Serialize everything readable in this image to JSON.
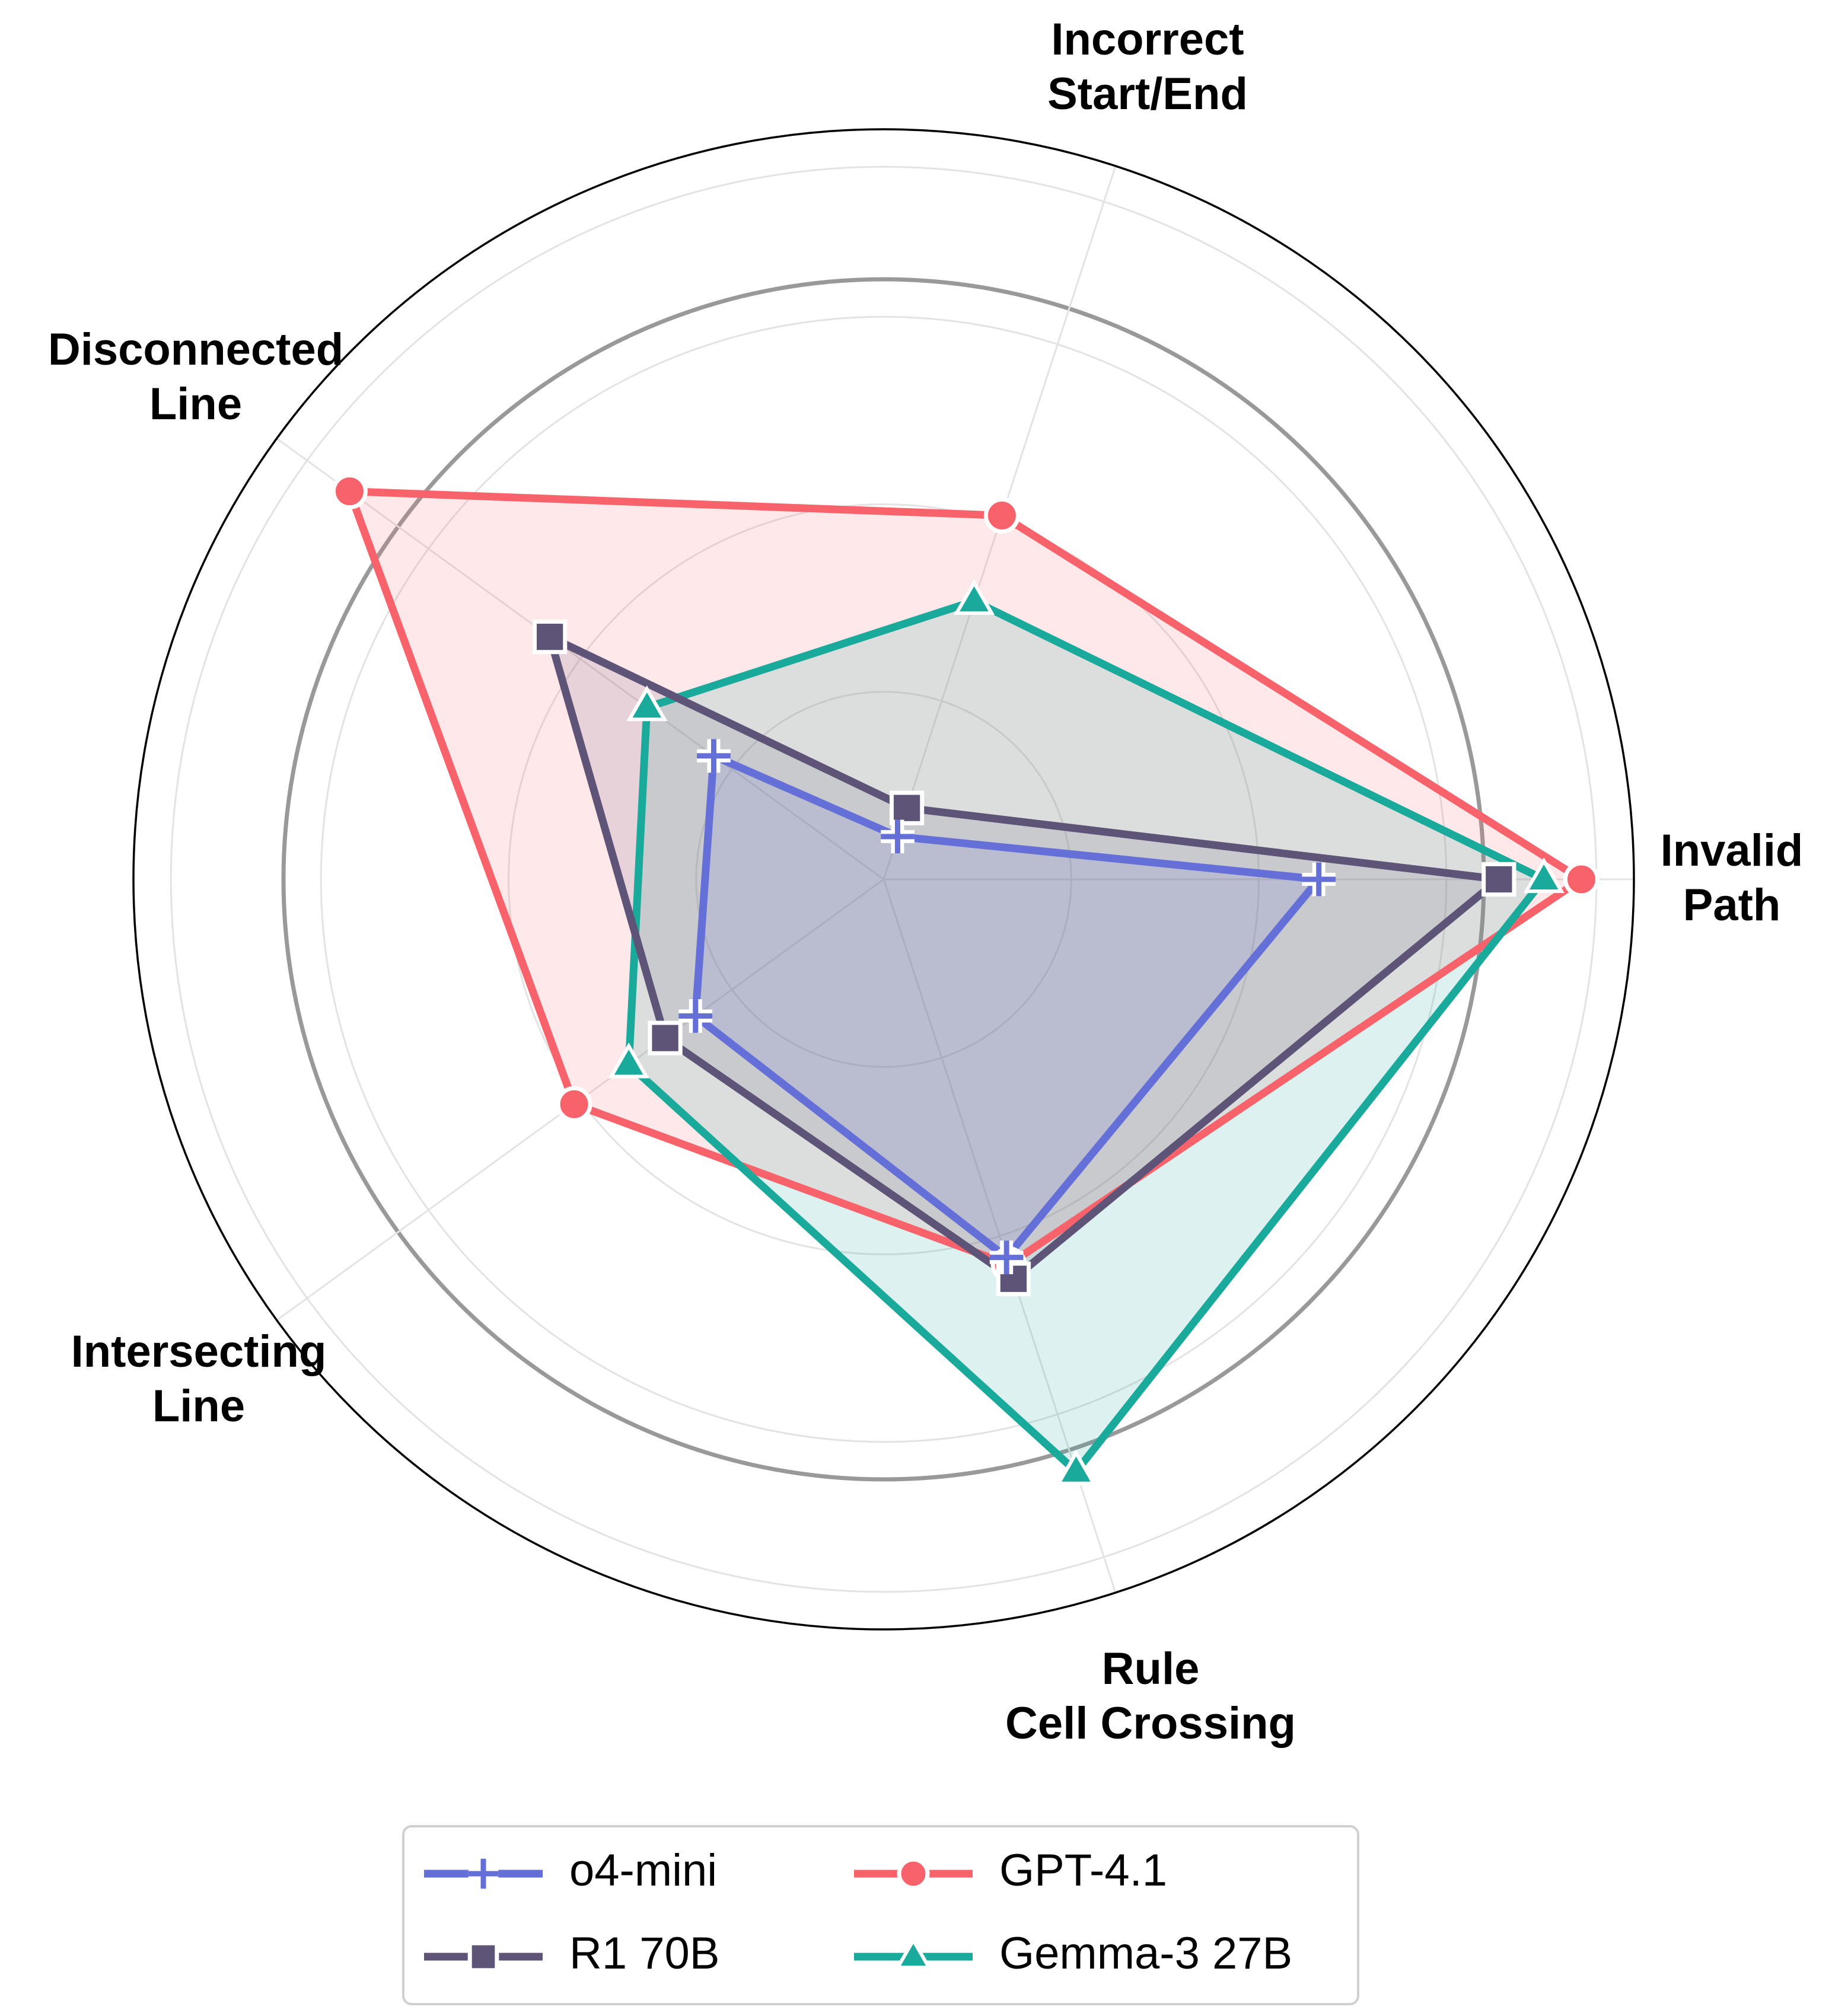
{
  "chart_data": {
    "type": "radar",
    "axes": [
      [
        "Invalid",
        "Path"
      ],
      [
        "Incorrect",
        "Start/End"
      ],
      [
        "Disconnected",
        "Line"
      ],
      [
        "Intersecting",
        "Line"
      ],
      [
        "Rule",
        "Cell Crossing"
      ]
    ],
    "axis_angles_deg": [
      0,
      72,
      144,
      216,
      288
    ],
    "rmax": 1.0,
    "grid": true,
    "rings": [
      0.25,
      0.5,
      0.75,
      0.8,
      0.95
    ],
    "legend_position": "bottom-center",
    "series": [
      {
        "name": "o4-mini",
        "color": "#6470d8",
        "marker": "plus",
        "values": [
          0.58,
          0.06,
          0.28,
          0.31,
          0.53
        ]
      },
      {
        "name": "GPT-4.1",
        "color": "#f8636b",
        "marker": "circle",
        "values": [
          0.93,
          0.51,
          0.88,
          0.51,
          0.54
        ]
      },
      {
        "name": "R1 70B",
        "color": "#5e5478",
        "marker": "square",
        "values": [
          0.82,
          0.1,
          0.55,
          0.36,
          0.56
        ]
      },
      {
        "name": "Gemma-3 27B",
        "color": "#1aaa9c",
        "marker": "triangle",
        "values": [
          0.88,
          0.39,
          0.39,
          0.42,
          0.83
        ]
      }
    ],
    "legend_order": [
      "o4-mini",
      "GPT-4.1",
      "R1 70B",
      "Gemma-3 27B"
    ]
  }
}
